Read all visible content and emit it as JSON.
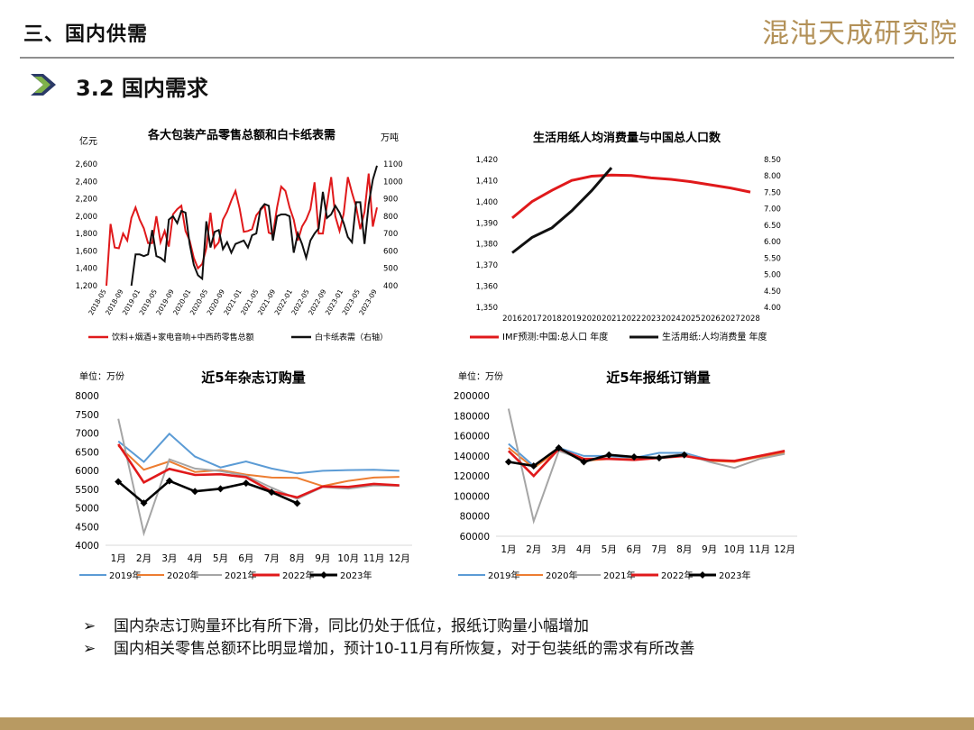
{
  "header": {
    "section_title": "三、国内供需",
    "logo_text": "混沌天成研究院",
    "subtitle": "3.2 国内需求",
    "accent_color": "#2b3a67",
    "logo_color": "#b39158"
  },
  "bullets": [
    {
      "mark": "➢",
      "text": "国内杂志订购量环比有所下滑，同比仍处于低位，报纸订购量小幅增加"
    },
    {
      "mark": "➢",
      "text": "国内相关零售总额环比明显增加，预计10-11月有所恢复，对于包装纸的需求有所改善"
    }
  ],
  "chart_data": [
    {
      "type": "line",
      "title": "各大包装产品零售总额和白卡纸表需",
      "ylabel": "亿元",
      "y2label": "万吨",
      "x_tick_labels": [
        "2018-05",
        "2018-09",
        "2019-01",
        "2019-05",
        "2019-09",
        "2020-01",
        "2020-05",
        "2020-09",
        "2021-01",
        "2021-05",
        "2021-09",
        "2022-01",
        "2022-05",
        "2022-09",
        "2023-01",
        "2023-05",
        "2023-09"
      ],
      "y_ticks": [
        "1,200",
        "1,400",
        "1,600",
        "1,800",
        "2,000",
        "2,200",
        "2,400",
        "2,600"
      ],
      "y2_ticks": [
        "400",
        "500",
        "600",
        "700",
        "800",
        "900",
        "1000",
        "1100"
      ],
      "ylim": [
        1200,
        2600
      ],
      "y2lim": [
        400,
        1100
      ],
      "x": [
        "2018-04",
        "2018-05",
        "2018-06",
        "2018-07",
        "2018-08",
        "2018-09",
        "2018-10",
        "2018-11",
        "2018-12",
        "2019-01",
        "2019-02",
        "2019-03",
        "2019-04",
        "2019-05",
        "2019-06",
        "2019-07",
        "2019-08",
        "2019-09",
        "2019-10",
        "2019-11",
        "2019-12",
        "2020-01",
        "2020-02",
        "2020-03",
        "2020-04",
        "2020-05",
        "2020-06",
        "2020-07",
        "2020-08",
        "2020-09",
        "2020-10",
        "2020-11",
        "2020-12",
        "2021-01",
        "2021-02",
        "2021-03",
        "2021-04",
        "2021-05",
        "2021-06",
        "2021-07",
        "2021-08",
        "2021-09",
        "2021-10",
        "2021-11",
        "2021-12",
        "2022-01",
        "2022-02",
        "2022-03",
        "2022-04",
        "2022-05",
        "2022-06",
        "2022-07",
        "2022-08",
        "2022-09",
        "2022-10",
        "2022-11",
        "2022-12",
        "2023-01",
        "2023-02",
        "2023-03",
        "2023-04",
        "2023-05",
        "2023-06",
        "2023-07",
        "2023-08",
        "2023-09"
      ],
      "series": [
        {
          "name": "饮料+烟酒+家电音响+中西药零售总额",
          "axis": "left",
          "color": "#e0191b",
          "values": [
            1200,
            1910,
            1640,
            1630,
            1800,
            1720,
            1980,
            2100,
            1960,
            1860,
            1690,
            1690,
            2000,
            1700,
            1830,
            1650,
            2020,
            2080,
            2120,
            1830,
            1720,
            1520,
            1400,
            1450,
            1630,
            2040,
            1640,
            1700,
            1960,
            2050,
            2180,
            2290,
            2090,
            1820,
            1830,
            1850,
            2010,
            2070,
            2120,
            1810,
            1790,
            2100,
            2340,
            2290,
            2100,
            1960,
            1720,
            1880,
            1960,
            2080,
            2390,
            1800,
            1800,
            2130,
            2450,
            2000,
            1830,
            2030,
            2450,
            2270,
            2110,
            1850,
            2050,
            2490,
            1880,
            2100
          ]
        },
        {
          "name": "白卡纸表需（右轴）",
          "axis": "right",
          "color": "#111111",
          "values": [
            null,
            null,
            null,
            null,
            null,
            null,
            400,
            580,
            580,
            570,
            580,
            720,
            570,
            560,
            540,
            780,
            800,
            760,
            830,
            820,
            640,
            520,
            460,
            440,
            770,
            620,
            710,
            720,
            610,
            650,
            590,
            640,
            650,
            660,
            620,
            690,
            700,
            840,
            870,
            860,
            660,
            800,
            810,
            810,
            800,
            590,
            700,
            640,
            560,
            660,
            700,
            730,
            940,
            790,
            810,
            860,
            820,
            760,
            680,
            650,
            880,
            880,
            640,
            870,
            1010,
            1090
          ]
        }
      ]
    },
    {
      "type": "line",
      "title": "生活用纸人均消费量与中国总人口数",
      "x": [
        "2016",
        "2017",
        "2018",
        "2019",
        "2020",
        "2021",
        "2022",
        "2023",
        "2024",
        "2025",
        "2026",
        "2027",
        "2028"
      ],
      "y_ticks": [
        "1,350",
        "1,360",
        "1,370",
        "1,380",
        "1,390",
        "1,400",
        "1,410",
        "1,420"
      ],
      "y2_ticks": [
        "4.00",
        "4.50",
        "5.00",
        "5.50",
        "6.00",
        "6.50",
        "7.00",
        "7.50",
        "8.00",
        "8.50"
      ],
      "ylim": [
        1350,
        1420
      ],
      "y2lim": [
        4.0,
        8.5
      ],
      "series": [
        {
          "name": "IMF预测:中国:总人口 年度",
          "axis": "left",
          "color": "#e0191b",
          "values": [
            1392.3,
            1400.1,
            1405.4,
            1410.1,
            1412.1,
            1412.6,
            1412.4,
            1411.3,
            1410.6,
            1409.5,
            1408.0,
            1406.5,
            1404.6
          ]
        },
        {
          "name": "生活用纸:人均消费量 年度",
          "axis": "right",
          "color": "#111111",
          "values": [
            5.66,
            6.13,
            6.42,
            6.94,
            7.55,
            8.25,
            null,
            null,
            null,
            null,
            null,
            null,
            null
          ]
        }
      ]
    },
    {
      "type": "line",
      "title": "近5年杂志订购量",
      "ylabel": "单位：万份",
      "categories": [
        "1月",
        "2月",
        "3月",
        "4月",
        "5月",
        "6月",
        "7月",
        "8月",
        "9月",
        "10月",
        "11月",
        "12月"
      ],
      "y_ticks": [
        "4000",
        "4500",
        "5000",
        "5500",
        "6000",
        "6500",
        "7000",
        "7500",
        "8000"
      ],
      "ylim": [
        4000,
        8000
      ],
      "series": [
        {
          "name": "2019年",
          "color": "#5b9bd5",
          "values": [
            6780,
            6230,
            6980,
            6370,
            6080,
            6240,
            6050,
            5920,
            5990,
            6010,
            6020,
            5990
          ]
        },
        {
          "name": "2020年",
          "color": "#ed7d31",
          "values": [
            6660,
            6020,
            6240,
            5960,
            6010,
            5890,
            5810,
            5800,
            5580,
            5720,
            5810,
            5830
          ]
        },
        {
          "name": "2021年",
          "color": "#a5a5a5",
          "values": [
            7380,
            4320,
            6300,
            6050,
            5980,
            5860,
            5540,
            5240,
            5560,
            5510,
            5600,
            5590
          ]
        },
        {
          "name": "2022年",
          "color": "#e0191b",
          "values": [
            6700,
            5680,
            6040,
            5880,
            5900,
            5820,
            5440,
            5280,
            5570,
            5560,
            5640,
            5600
          ]
        },
        {
          "name": "2023年",
          "color": "#000000",
          "values": [
            5700,
            5130,
            5720,
            5440,
            5510,
            5660,
            5420,
            5120,
            null,
            null,
            null,
            null
          ]
        }
      ]
    },
    {
      "type": "line",
      "title": "近5年报纸订销量",
      "ylabel": "单位：万份",
      "categories": [
        "1月",
        "2月",
        "3月",
        "4月",
        "5月",
        "6月",
        "7月",
        "8月",
        "9月",
        "10月",
        "11月",
        "12月"
      ],
      "y_ticks": [
        "60000",
        "80000",
        "100000",
        "120000",
        "140000",
        "160000",
        "180000",
        "200000"
      ],
      "ylim": [
        60000,
        200000
      ],
      "series": [
        {
          "name": "2019年",
          "color": "#5b9bd5",
          "values": [
            152000,
            130000,
            148000,
            140000,
            140000,
            138000,
            143000,
            143000,
            136000,
            135000,
            140000,
            145000
          ]
        },
        {
          "name": "2020年",
          "color": "#ed7d31",
          "values": [
            148000,
            128000,
            146000,
            135000,
            137000,
            137000,
            138000,
            140000,
            135000,
            134000,
            139000,
            143000
          ]
        },
        {
          "name": "2021年",
          "color": "#a5a5a5",
          "values": [
            187000,
            75000,
            145000,
            136000,
            138000,
            136000,
            139000,
            142000,
            134000,
            128000,
            137000,
            142000
          ]
        },
        {
          "name": "2022年",
          "color": "#e0191b",
          "values": [
            145000,
            120000,
            147000,
            137000,
            137000,
            136000,
            138000,
            140000,
            136000,
            135000,
            140000,
            145000
          ]
        },
        {
          "name": "2023年",
          "color": "#000000",
          "values": [
            134000,
            130000,
            148000,
            134000,
            141000,
            139000,
            138000,
            141000,
            null,
            null,
            null,
            null
          ]
        }
      ]
    }
  ]
}
